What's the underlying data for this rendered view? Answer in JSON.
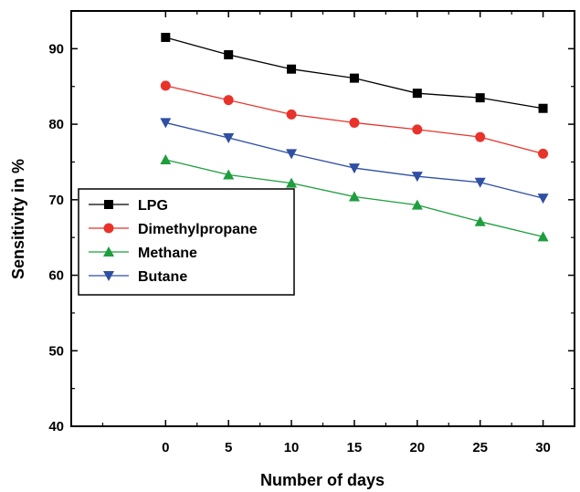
{
  "chart_data": {
    "type": "line",
    "title": "",
    "xlabel": "Number of days",
    "ylabel": "Sensitivity in %",
    "x": [
      0,
      5,
      10,
      15,
      20,
      25,
      30
    ],
    "xlim": [
      -7.5,
      32.5
    ],
    "ylim": [
      40,
      95
    ],
    "xticks": [
      0,
      5,
      10,
      15,
      20,
      25,
      30
    ],
    "yticks": [
      40,
      50,
      60,
      70,
      80,
      90
    ],
    "grid": false,
    "legend_position": "center-left",
    "series": [
      {
        "name": "LPG",
        "marker": "square",
        "color": "#000000",
        "values": [
          91.5,
          89.2,
          87.3,
          86.1,
          84.1,
          83.5,
          82.1
        ]
      },
      {
        "name": "Dimethylpropane",
        "marker": "circle",
        "color": "#e8332b",
        "values": [
          85.1,
          83.2,
          81.3,
          80.2,
          79.3,
          78.3,
          76.1
        ]
      },
      {
        "name": "Methane",
        "marker": "triangle-up",
        "color": "#1e9e3e",
        "values": [
          75.3,
          73.3,
          72.2,
          70.4,
          69.3,
          67.1,
          65.1
        ]
      },
      {
        "name": "Butane",
        "marker": "triangle-down",
        "color": "#2f4fa3",
        "values": [
          80.2,
          78.2,
          76.1,
          74.2,
          73.1,
          72.3,
          70.2
        ]
      }
    ]
  }
}
